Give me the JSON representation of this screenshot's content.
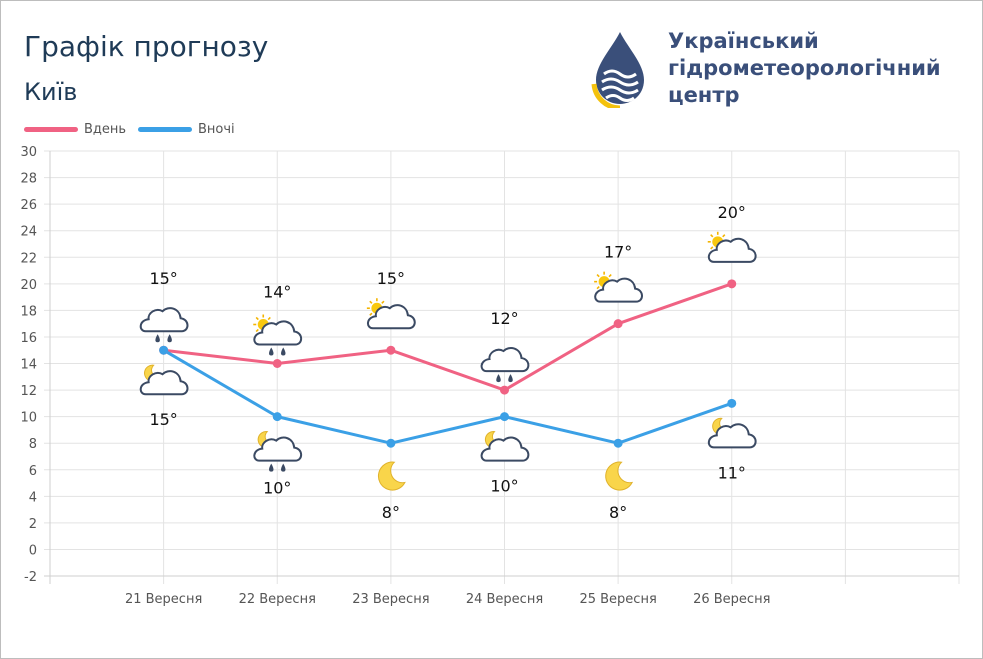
{
  "header": {
    "title": "Графік прогнозу",
    "city": "Київ",
    "org_lines": [
      "Український",
      "гідрометеорологічний",
      "центр"
    ]
  },
  "colors": {
    "day": "#f06283",
    "night": "#3ba0e6",
    "grid": "#e3e3e3",
    "title": "#1f3b57",
    "org": "#3a4f7a"
  },
  "chart_data": {
    "type": "line",
    "categories": [
      "21 Вересня",
      "22 Вересня",
      "23 Вересня",
      "24 Вересня",
      "25 Вересня",
      "26 Вересня"
    ],
    "series": [
      {
        "name": "Вдень",
        "values": [
          15,
          14,
          15,
          12,
          17,
          20
        ],
        "labels": [
          "15°",
          "14°",
          "15°",
          "12°",
          "17°",
          "20°"
        ],
        "icons": [
          "rain-cloud-icon",
          "sun-cloud-rain-icon",
          "sun-cloud-icon",
          "rain-cloud-icon",
          "sun-cloud-icon",
          "sun-cloud-icon"
        ]
      },
      {
        "name": "Вночі",
        "values": [
          15,
          10,
          8,
          10,
          8,
          11
        ],
        "labels": [
          "15°",
          "10°",
          "8°",
          "10°",
          "8°",
          "11°"
        ],
        "icons": [
          "moon-cloud-icon",
          "moon-cloud-rain-icon",
          "moon-icon",
          "moon-cloud-icon",
          "moon-icon",
          "moon-cloud-icon"
        ]
      }
    ],
    "y_ticks": [
      "30",
      "28",
      "26",
      "24",
      "22",
      "20",
      "18",
      "16",
      "14",
      "12",
      "10",
      "8",
      "6",
      "4",
      "2",
      "0",
      "-2"
    ],
    "ylim": [
      -2,
      30
    ],
    "grid": true,
    "legend": "top-left"
  }
}
